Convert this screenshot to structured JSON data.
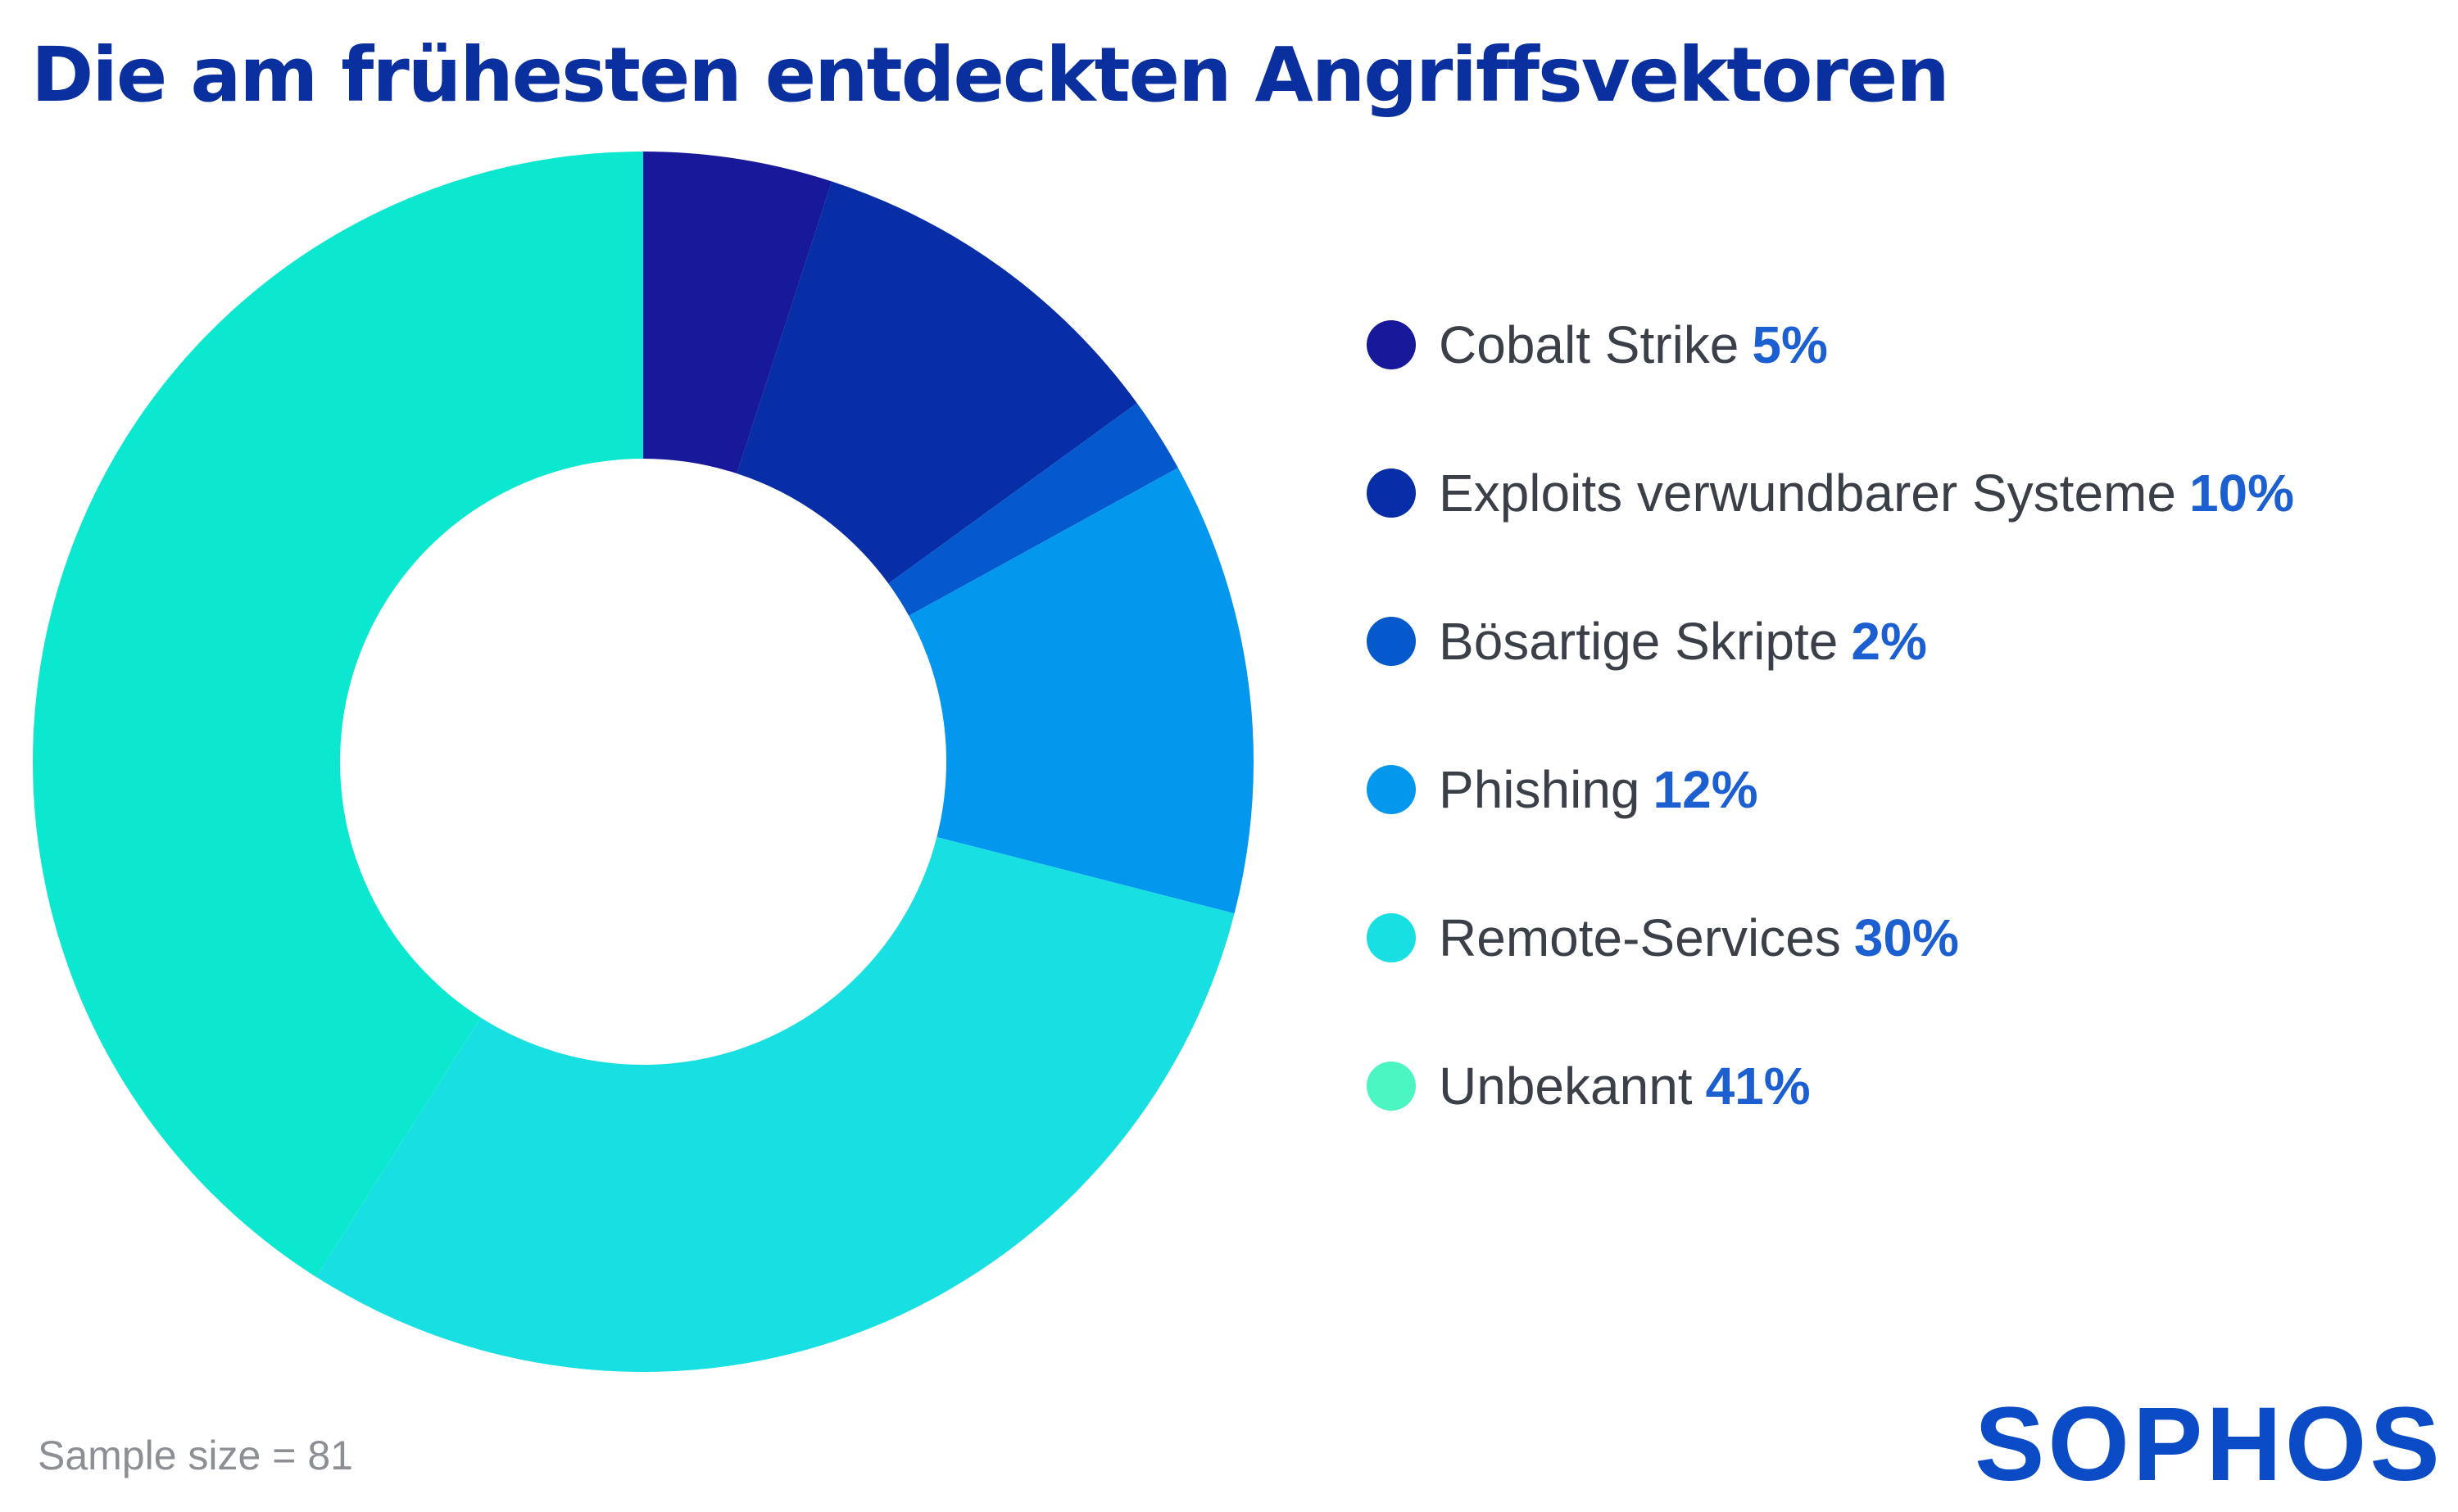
{
  "chart_data": {
    "type": "pie",
    "title": "Die am frühesten entdeckten Angriffsvektoren",
    "categories": [
      "Cobalt Strike",
      "Exploits verwundbarer Systeme",
      "Bösartige Skripte",
      "Phishing",
      "Remote-Services",
      "Unbekannt"
    ],
    "values": [
      5,
      10,
      2,
      12,
      30,
      41
    ],
    "value_labels": [
      "5%",
      "10%",
      "2%",
      "12%",
      "30%",
      "41%"
    ],
    "colors": [
      "#18189a",
      "#072da7",
      "#0559cc",
      "#0397ee",
      "#18e0e2",
      "#0ce8cf"
    ],
    "legend_colors": [
      "#18189a",
      "#072da7",
      "#0559cc",
      "#0397ee",
      "#18e0e2",
      "#4cf6c2"
    ],
    "legend_position": "right",
    "donut": true
  },
  "footer": {
    "sample_size": "Sample size = 81"
  },
  "brand": {
    "logo_text": "SOPHOS"
  }
}
